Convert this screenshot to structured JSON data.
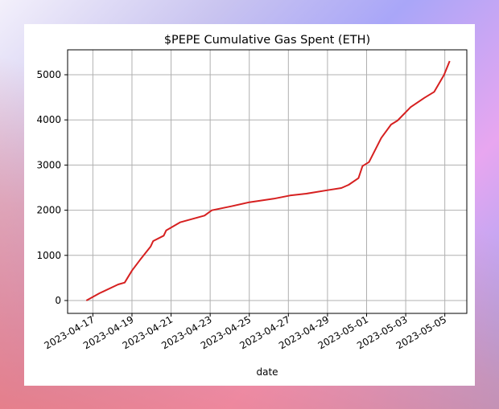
{
  "chart_data": {
    "type": "line",
    "title": "$PEPE Cumulative Gas Spent (ETH)",
    "xlabel": "date",
    "ylabel": "",
    "grid": true,
    "line_color": "#d62020",
    "xlim": [
      "2023-04-15T17:00",
      "2023-05-06T03:00"
    ],
    "ylim": [
      -285,
      5552
    ],
    "x_ticks": [
      "2023-04-17",
      "2023-04-19",
      "2023-04-21",
      "2023-04-23",
      "2023-04-25",
      "2023-04-27",
      "2023-04-29",
      "2023-05-01",
      "2023-05-03",
      "2023-05-05"
    ],
    "y_ticks": [
      0,
      1000,
      2000,
      3000,
      4000,
      5000
    ],
    "x": [
      "2023-04-16T16:00",
      "2023-04-17T08:00",
      "2023-04-18T07:00",
      "2023-04-18T15:00",
      "2023-04-19T00:00",
      "2023-04-19T10:00",
      "2023-04-19T23:00",
      "2023-04-20T02:00",
      "2023-04-20T15:00",
      "2023-04-20T18:00",
      "2023-04-21T11:00",
      "2023-04-22T17:00",
      "2023-04-23T02:00",
      "2023-04-24T02:00",
      "2023-04-25T00:00",
      "2023-04-26T06:00",
      "2023-04-27T02:00",
      "2023-04-27T22:00",
      "2023-04-29T00:00",
      "2023-04-29T17:00",
      "2023-04-30T02:00",
      "2023-04-30T14:00",
      "2023-04-30T19:00",
      "2023-05-01T03:00",
      "2023-05-01T18:00",
      "2023-05-02T06:00",
      "2023-05-02T14:00",
      "2023-05-03T06:00",
      "2023-05-03T23:00",
      "2023-05-04T11:00",
      "2023-05-04T23:00",
      "2023-05-05T06:00"
    ],
    "values": [
      0,
      160,
      356,
      397,
      664,
      902,
      1198,
      1317,
      1436,
      1553,
      1731,
      1881,
      1998,
      2087,
      2176,
      2254,
      2325,
      2366,
      2443,
      2491,
      2562,
      2710,
      2977,
      3066,
      3600,
      3897,
      3986,
      4283,
      4490,
      4621,
      4995,
      5302
    ]
  }
}
